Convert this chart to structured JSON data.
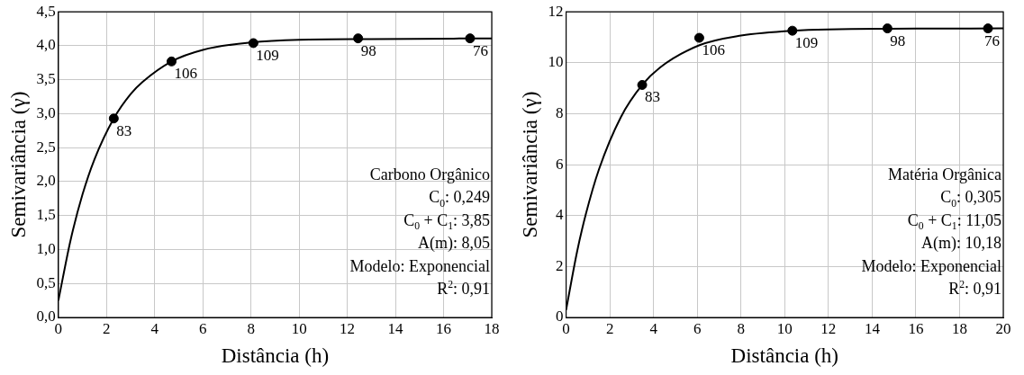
{
  "chart_data": [
    {
      "type": "scatter",
      "xlabel": "Distância (h)",
      "ylabel": "Semivariância (γ)",
      "xlim": [
        0,
        18
      ],
      "xticks": [
        0,
        2,
        4,
        6,
        8,
        10,
        12,
        14,
        16,
        18
      ],
      "ylim": [
        0,
        4.5
      ],
      "yticks": [
        {
          "value": 0,
          "label": "0,0"
        },
        {
          "value": 0.5,
          "label": "0,5"
        },
        {
          "value": 1,
          "label": "1,0"
        },
        {
          "value": 1.5,
          "label": "1,5"
        },
        {
          "value": 2,
          "label": "2,0"
        },
        {
          "value": 2.5,
          "label": "2,5"
        },
        {
          "value": 3,
          "label": "3,0"
        },
        {
          "value": 3.5,
          "label": "3,5"
        },
        {
          "value": 4,
          "label": "4,0"
        },
        {
          "value": 4.5,
          "label": "4,5"
        }
      ],
      "grid": true,
      "marker": "circle",
      "series": [
        {
          "color": "#000000",
          "x": [
            2.3,
            4.7,
            8.1,
            12.45,
            17.1
          ],
          "values": [
            2.93,
            3.77,
            4.04,
            4.11,
            4.11
          ]
        },
        {
          "type": "line",
          "color": "#000000",
          "marker": "none",
          "x": [
            0,
            0.5,
            1,
            1.5,
            2.3,
            3,
            3.5,
            4.7,
            6,
            8,
            10,
            13,
            18
          ],
          "values": [
            0.25,
            1.13,
            1.81,
            2.33,
            2.93,
            3.29,
            3.47,
            3.77,
            3.94,
            4.05,
            4.09,
            4.1,
            4.11
          ]
        }
      ],
      "annotations": [
        {
          "text": "83",
          "x": 2.3,
          "y": 2.93
        },
        {
          "text": "106",
          "x": 4.7,
          "y": 3.77
        },
        {
          "text": "109",
          "x": 8.1,
          "y": 4.04
        },
        {
          "text": "98",
          "x": 12.45,
          "y": 4.11
        },
        {
          "text": "76",
          "x": 17.1,
          "y": 4.11
        },
        "Carbono Orgânico",
        "C$_{0}$: 0,249",
        "C$_{0}$ + C$_{1}$: 3,85",
        "A(m): 8,05",
        "Modelo: Exponencial",
        "R$^{2}$: 0,91"
      ]
    },
    {
      "type": "scatter",
      "xlabel": "Distância (h)",
      "ylabel": "Semivariância (γ)",
      "xlim": [
        0,
        20
      ],
      "xticks": [
        0,
        2,
        4,
        6,
        8,
        10,
        12,
        14,
        16,
        18,
        20
      ],
      "ylim": [
        0,
        12
      ],
      "yticks": [
        0,
        2,
        4,
        6,
        8,
        10,
        12
      ],
      "grid": true,
      "marker": "circle",
      "series": [
        {
          "color": "#000000",
          "x": [
            3.48,
            6.09,
            10.35,
            14.7,
            19.3
          ],
          "values": [
            9.13,
            10.98,
            11.26,
            11.35,
            11.35
          ]
        },
        {
          "type": "line",
          "color": "#000000",
          "marker": "none",
          "x": [
            0,
            0.5,
            0.9,
            1.5,
            2.5,
            3.48,
            4.3,
            6.1,
            8,
            10.35,
            14.7,
            20
          ],
          "values": [
            0.3,
            2.58,
            4.05,
            5.81,
            7.86,
            9.13,
            9.82,
            10.69,
            11.07,
            11.26,
            11.34,
            11.35
          ]
        }
      ],
      "annotations": [
        {
          "text": "83",
          "x": 3.48,
          "y": 9.13
        },
        {
          "text": "106",
          "x": 6.09,
          "y": 10.98
        },
        {
          "text": "109",
          "x": 10.35,
          "y": 11.26
        },
        {
          "text": "98",
          "x": 14.7,
          "y": 11.35
        },
        {
          "text": "76",
          "x": 19.3,
          "y": 11.35
        },
        "Matéria Orgânica",
        "C$_{0}$: 0,305",
        "C$_{0}$ + C$_{1}$: 11,05",
        "A(m): 10,18",
        "Modelo: Exponencial",
        "R$^{2}$: 0,91"
      ]
    }
  ]
}
